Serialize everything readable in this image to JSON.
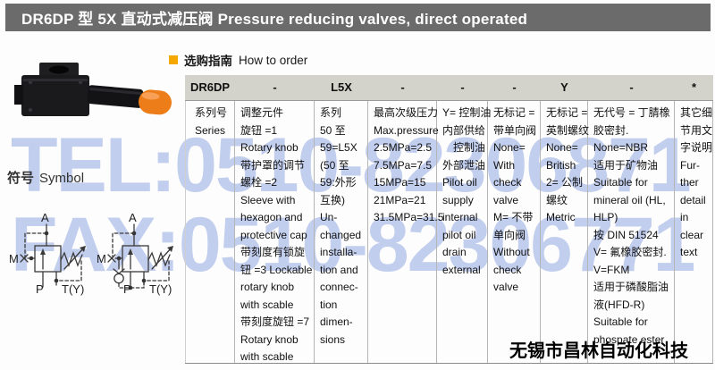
{
  "title_bar": {
    "text": "DR6DP 型 5X 直动式减压阀  Pressure reducing valves, direct operated",
    "background_color": "#6b6b6b"
  },
  "section": {
    "bullet_color": "#f5a800",
    "heading_zh": "选购指南",
    "heading_en": "How to order"
  },
  "symbol": {
    "label_zh": "符号",
    "label_en": "Symbol",
    "port_a": "A",
    "port_m": "M",
    "port_p": "P",
    "port_t": "T(Y)"
  },
  "watermarks": {
    "tel": "TEL:0510-82306871",
    "fax": "FAX:0510-82306771",
    "company": "无锡市昌林自动化科技",
    "color": "#6a86d6"
  },
  "photo": {
    "description": "pressure reducing valve, black body with orange knob",
    "cap_color": "#ed7d18"
  },
  "order_table": {
    "header_background": "#d3d3cb",
    "header_cells": [
      "DR6DP",
      "-",
      "L5X",
      "-",
      "-",
      "-",
      "Y",
      "-",
      "*"
    ],
    "columns": [
      {
        "name": "series",
        "lines": [
          "系列号",
          "Series"
        ]
      },
      {
        "name": "adjustment-element",
        "lines": [
          "调整元件",
          "旋钮 =1",
          "Rotary knob",
          "带护罩的调节",
          "螺栓 =2",
          "Sleeve with",
          "hexagon and",
          "protective cap",
          "带刻度有锁旋",
          "钮 =3 Lockable",
          "rotary knob",
          "with scable",
          "带刻度旋钮 =7",
          "Rotary knob",
          "with scable"
        ]
      },
      {
        "name": "series-50-59",
        "lines": [
          "系列",
          "50 至",
          "59=L5X",
          "(50 至",
          "59:外形",
          "互换)",
          "Un-",
          "changed",
          "installa-",
          "tion and",
          "connec-",
          "tion",
          "dimen-",
          "sions"
        ]
      },
      {
        "name": "max-pressure",
        "lines": [
          "最高次级压力",
          "Max.pressure",
          "2.5MPa=2.5",
          "7.5MPa=7.5",
          "15MPa=15",
          "21MPa=21",
          "31.5MPa=31.5"
        ]
      },
      {
        "name": "pilot-oil",
        "lines": [
          "Y= 控制油",
          "内部供给",
          "　控制油",
          "外部泄油",
          "Pilot oil",
          "supply",
          "internal",
          "pilot oil",
          "drain",
          "external"
        ]
      },
      {
        "name": "check-valve",
        "lines": [
          "无标记 =",
          "带单向阀",
          "None=",
          "With",
          "check",
          "valve",
          "M= 不带",
          "单向阀",
          "Without",
          "check",
          "valve"
        ]
      },
      {
        "name": "thread",
        "lines": [
          "无标记 =",
          "英制螺纹",
          "None=",
          "British",
          "2= 公制",
          "螺纹",
          "Metric"
        ]
      },
      {
        "name": "seal-material",
        "lines": [
          "无代号 = 丁腈橡",
          "胶密封.",
          "None=NBR",
          "适用于矿物油",
          "Suitable for",
          "mineral oil (HL,",
          "HLP)",
          "按 DIN 51524",
          "V= 氟橡胶密封.",
          "V=FKM",
          "适用于磷酸脂油",
          "液(HFD-R)",
          "Suitable for",
          "phospate ester"
        ]
      },
      {
        "name": "further-detail",
        "lines": [
          "其它细",
          "节用文",
          "字说明",
          "Fur-",
          "ther",
          "detail",
          "in",
          "clear",
          "text"
        ]
      }
    ]
  }
}
